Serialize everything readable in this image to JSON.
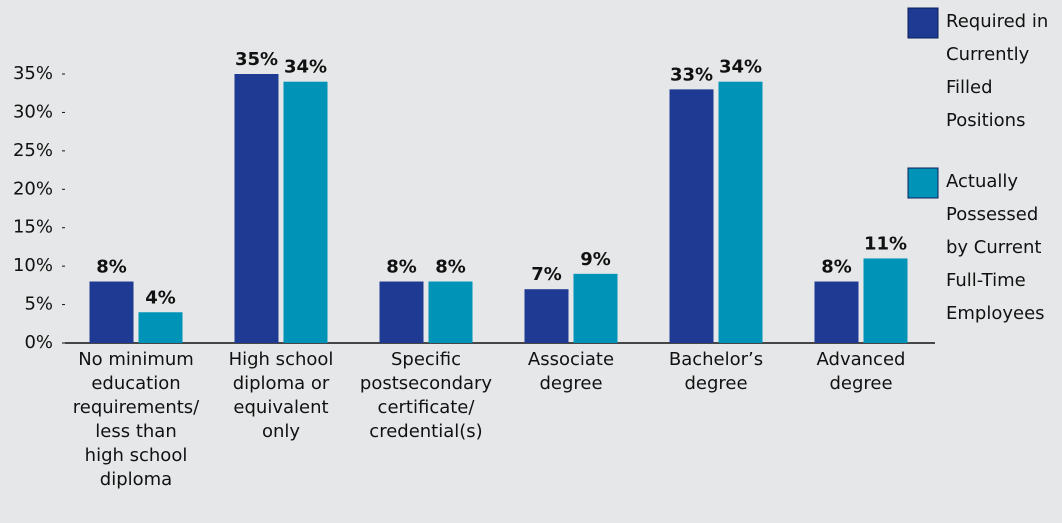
{
  "chart_data": {
    "type": "bar",
    "categories": [
      "No minimum\neducation\nrequirements/\nless than\nhigh school\ndiploma",
      "High school\ndiploma or\nequivalent\nonly",
      "Specific\npostsecondary\ncertificate/\ncredential(s)",
      "Associate\ndegree",
      "Bachelor’s\ndegree",
      "Advanced\ndegree"
    ],
    "series": [
      {
        "name": "Required in\nCurrently\nFilled\nPositions",
        "color": "#1f3a93",
        "values": [
          8,
          35,
          8,
          7,
          33,
          8
        ],
        "value_labels": [
          "8%",
          "35%",
          "8%",
          "7%",
          "33%",
          "8%"
        ]
      },
      {
        "name": "Actually\nPossessed\nby Current\nFull-Time\nEmployees",
        "color": "#0093b8",
        "values": [
          4,
          34,
          8,
          9,
          34,
          11
        ],
        "value_labels": [
          "4%",
          "34%",
          "8%",
          "9%",
          "34%",
          "11%"
        ]
      }
    ],
    "ylim": [
      0,
      35
    ],
    "yticks": [
      {
        "value": 0,
        "label": "0%"
      },
      {
        "value": 5,
        "label": "5%"
      },
      {
        "value": 10,
        "label": "10%"
      },
      {
        "value": 15,
        "label": "15%"
      },
      {
        "value": 20,
        "label": "20%"
      },
      {
        "value": 25,
        "label": "25%"
      },
      {
        "value": 30,
        "label": "30%"
      },
      {
        "value": 35,
        "label": "35%"
      }
    ],
    "grid": false,
    "legend": "right"
  }
}
